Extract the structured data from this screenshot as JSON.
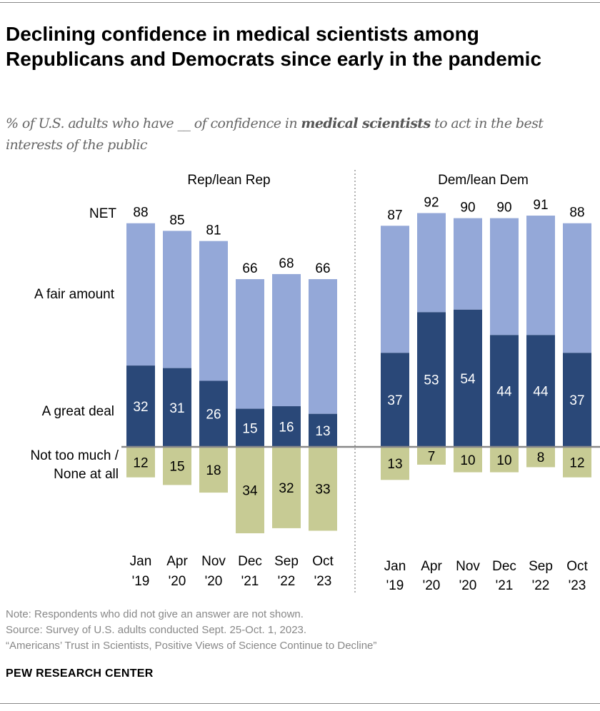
{
  "title": "Declining confidence in medical scientists among Republicans and Democrats since early in the pandemic",
  "subtitle": {
    "pre": "% of U.S. adults who have __ of confidence in ",
    "bold": "medical scientists",
    "post": " to act in the best interests of the public"
  },
  "colors": {
    "great_deal": "#2a4878",
    "fair_amount": "#94a8d8",
    "not_too_much": "#c7cb94"
  },
  "chart_data": {
    "type": "bar",
    "stacked": true,
    "categories": [
      [
        "Jan",
        "'19"
      ],
      [
        "Apr",
        "'20"
      ],
      [
        "Nov",
        "'20"
      ],
      [
        "Dec",
        "'21"
      ],
      [
        "Sep",
        "'22"
      ],
      [
        "Oct",
        "'23"
      ]
    ],
    "row_labels": {
      "net": "NET",
      "fair": "A fair amount",
      "great": "A great deal",
      "not_much": [
        "Not too much /",
        "None at all"
      ]
    },
    "panels": [
      {
        "name": "Rep/lean Rep",
        "net": [
          88,
          85,
          81,
          66,
          68,
          66
        ],
        "great_deal": [
          32,
          31,
          26,
          15,
          16,
          13
        ],
        "fair_amount": [
          56,
          54,
          55,
          51,
          52,
          53
        ],
        "not_too_much_none": [
          12,
          15,
          18,
          34,
          32,
          33
        ]
      },
      {
        "name": "Dem/lean Dem",
        "net": [
          87,
          92,
          90,
          90,
          91,
          88
        ],
        "great_deal": [
          37,
          53,
          54,
          44,
          44,
          37
        ],
        "fair_amount": [
          50,
          39,
          36,
          46,
          47,
          51
        ],
        "not_too_much_none": [
          13,
          7,
          10,
          10,
          8,
          12
        ]
      }
    ]
  },
  "notes": {
    "note": "Note: Respondents who did not give an answer are not shown.",
    "source": "Source: Survey of U.S. adults conducted Sept. 25-Oct. 1, 2023.",
    "report": "“Americans’ Trust in Scientists, Positive Views of Science Continue to Decline”"
  },
  "brand": "PEW RESEARCH CENTER"
}
